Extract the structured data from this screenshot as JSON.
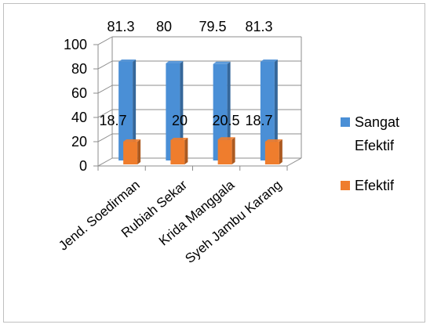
{
  "chart_data": {
    "type": "bar",
    "categories": [
      "Jend. Soedirman",
      "Rubiah Sekar",
      "Krida Manggala",
      "Syeh Jambu Karang"
    ],
    "series": [
      {
        "name": "Sangat Efektif",
        "values": [
          81.3,
          80,
          79.5,
          81.3
        ],
        "color": "#4a8fd6"
      },
      {
        "name": "Efektif",
        "values": [
          18.7,
          20,
          20.5,
          18.7
        ],
        "color": "#ef7d2d"
      }
    ],
    "ylim": [
      0,
      100
    ],
    "yticks": [
      0,
      20,
      40,
      60,
      80,
      100
    ],
    "grid": true,
    "legend_position": "right"
  }
}
